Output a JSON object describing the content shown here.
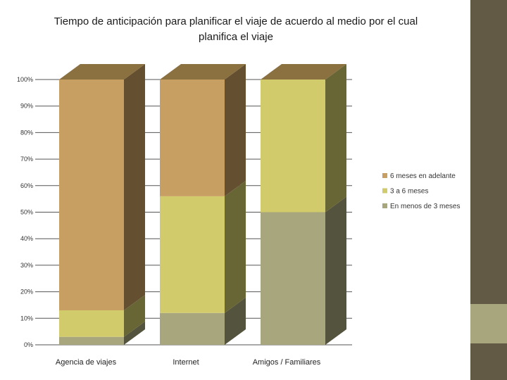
{
  "chart_data": {
    "type": "bar",
    "stacked": true,
    "three_d": true,
    "title": "Tiempo de anticipación para planificar el viaje de acuerdo al medio por el cual planifica el viaje",
    "categories": [
      "Agencia de viajes",
      "Internet",
      "Amigos / Familiares"
    ],
    "series": [
      {
        "name": "En menos de 3 meses",
        "values": [
          3,
          12,
          50
        ],
        "color": "#a8a67c"
      },
      {
        "name": "3 a 6 meses",
        "values": [
          10,
          44,
          50
        ],
        "color": "#d2cb6b"
      },
      {
        "name": "6 meses en adelante",
        "values": [
          87,
          44,
          0
        ],
        "color": "#c89f62"
      }
    ],
    "yticks": [
      "0%",
      "10%",
      "20%",
      "30%",
      "40%",
      "50%",
      "60%",
      "70%",
      "80%",
      "90%",
      "100%"
    ],
    "ylim": [
      0,
      100
    ],
    "legend_order": [
      "6 meses en adelante",
      "3 a 6 meses",
      "En menos de 3 meses"
    ],
    "legend_position": "right",
    "xlabel": "",
    "ylabel": ""
  },
  "colors": {
    "top_face": "#8b7040",
    "decor_dark": "#635a46",
    "decor_light": "#a8a67c",
    "grid": "#555555"
  }
}
